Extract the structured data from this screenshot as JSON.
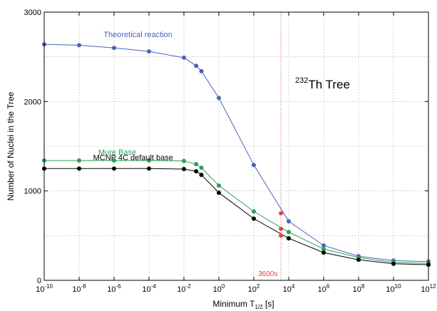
{
  "chart_data": {
    "type": "line",
    "title_super": "232",
    "title": "Th Tree",
    "xlabel": "Minimum T",
    "xlabel_sub": "1/2",
    "xlabel_unit": " [s]",
    "ylabel": "Number of Nuclei in the Tree",
    "x_scale": "log",
    "x_range_exp": [
      -10,
      12
    ],
    "x_tick_exps": [
      -10,
      -8,
      -6,
      -4,
      -2,
      0,
      2,
      4,
      6,
      8,
      10,
      12
    ],
    "y_range": [
      0,
      3000
    ],
    "y_ticks": [
      0,
      1000,
      2000,
      3000
    ],
    "y_tick_labels": [
      "0",
      "1000",
      "2000",
      "3000"
    ],
    "grid": true,
    "reference_line": {
      "x_exp": 3.556,
      "label": "3600s",
      "color": "#e8413a"
    },
    "series": [
      {
        "name": "Theoretical reaction",
        "color": "#4a63b8",
        "x_exp": [
          -10,
          -8,
          -6,
          -4,
          -2,
          -1.3,
          -1,
          0,
          2,
          4,
          6,
          8,
          10,
          12
        ],
        "y": [
          2640,
          2630,
          2600,
          2560,
          2490,
          2400,
          2340,
          2040,
          1290,
          660,
          390,
          270,
          220,
          210
        ]
      },
      {
        "name": "Mure Base",
        "color": "#2ca05a",
        "x_exp": [
          -10,
          -8,
          -6,
          -4,
          -2,
          -1.3,
          -1,
          0,
          2,
          4,
          6,
          8,
          10,
          12
        ],
        "y": [
          1340,
          1340,
          1340,
          1340,
          1335,
          1300,
          1260,
          1060,
          770,
          540,
          350,
          255,
          200,
          190
        ]
      },
      {
        "name": "MCNP 4C default base",
        "color": "#000000",
        "x_exp": [
          -10,
          -8,
          -6,
          -4,
          -2,
          -1.3,
          -1,
          0,
          2,
          4,
          6,
          8,
          10,
          12
        ],
        "y": [
          1250,
          1250,
          1250,
          1250,
          1245,
          1220,
          1180,
          980,
          690,
          470,
          310,
          230,
          185,
          175
        ]
      }
    ],
    "reference_points": {
      "color": "#e8413a",
      "x_exp": [
        3.556,
        3.556,
        3.556
      ],
      "y": [
        750,
        575,
        500
      ]
    }
  }
}
